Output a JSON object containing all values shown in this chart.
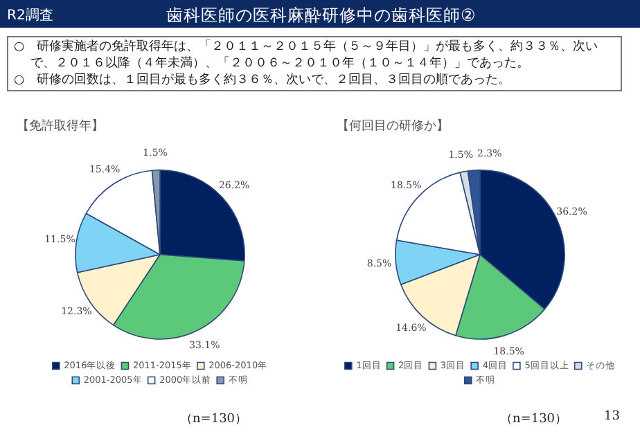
{
  "chart_data": [
    {
      "type": "other",
      "title": "歯科医師の医科麻酔研修中の歯科医師②",
      "annotations": [
        "R2調査",
        "○　研修実施者の免許取得年は、「２０１１～２０１５年（５～９年目）」が最も多く、約３３％、次いで、２０１６以降（４年未満）、「２００６～２０１０年（１０～１４年）」であった。",
        "○　研修の回数は、１回目が最も多く約３６％、次いで、２回目、３回目の順であった。"
      ]
    },
    {
      "type": "pie",
      "title": "【免許取得年】",
      "categories": [
        "2016年以後",
        "2011-2015年",
        "2006-2010年",
        "2001-2005年",
        "2000年以前",
        "不明"
      ],
      "values": [
        26.2,
        33.1,
        12.3,
        11.5,
        15.4,
        1.5
      ],
      "colors": [
        "#002060",
        "#5cc97a",
        "#fff2cc",
        "#7fd3f5",
        "#ffffff",
        "#8497b0"
      ],
      "value_labels": [
        "26.2%",
        "33.1%",
        "12.3%",
        "11.5%",
        "15.4%",
        "1.5%"
      ],
      "legend": "bottom",
      "annotations": [
        "（n=130）"
      ]
    },
    {
      "type": "pie",
      "title": "【何回目の研修か】",
      "categories": [
        "1回目",
        "2回目",
        "3回目",
        "4回目",
        "5回目以上",
        "その他",
        "不明"
      ],
      "values": [
        36.2,
        18.5,
        14.6,
        8.5,
        18.5,
        1.5,
        2.3
      ],
      "colors": [
        "#002060",
        "#5cc97a",
        "#fff2cc",
        "#7fd3f5",
        "#ffffff",
        "#d6dce5",
        "#2f5597"
      ],
      "value_labels": [
        "36.2%",
        "18.5%",
        "14.6%",
        "8.5%",
        "18.5%",
        "1.5%",
        "2.3%"
      ],
      "legend": "bottom",
      "annotations": [
        "（n=130）",
        "13"
      ]
    }
  ]
}
